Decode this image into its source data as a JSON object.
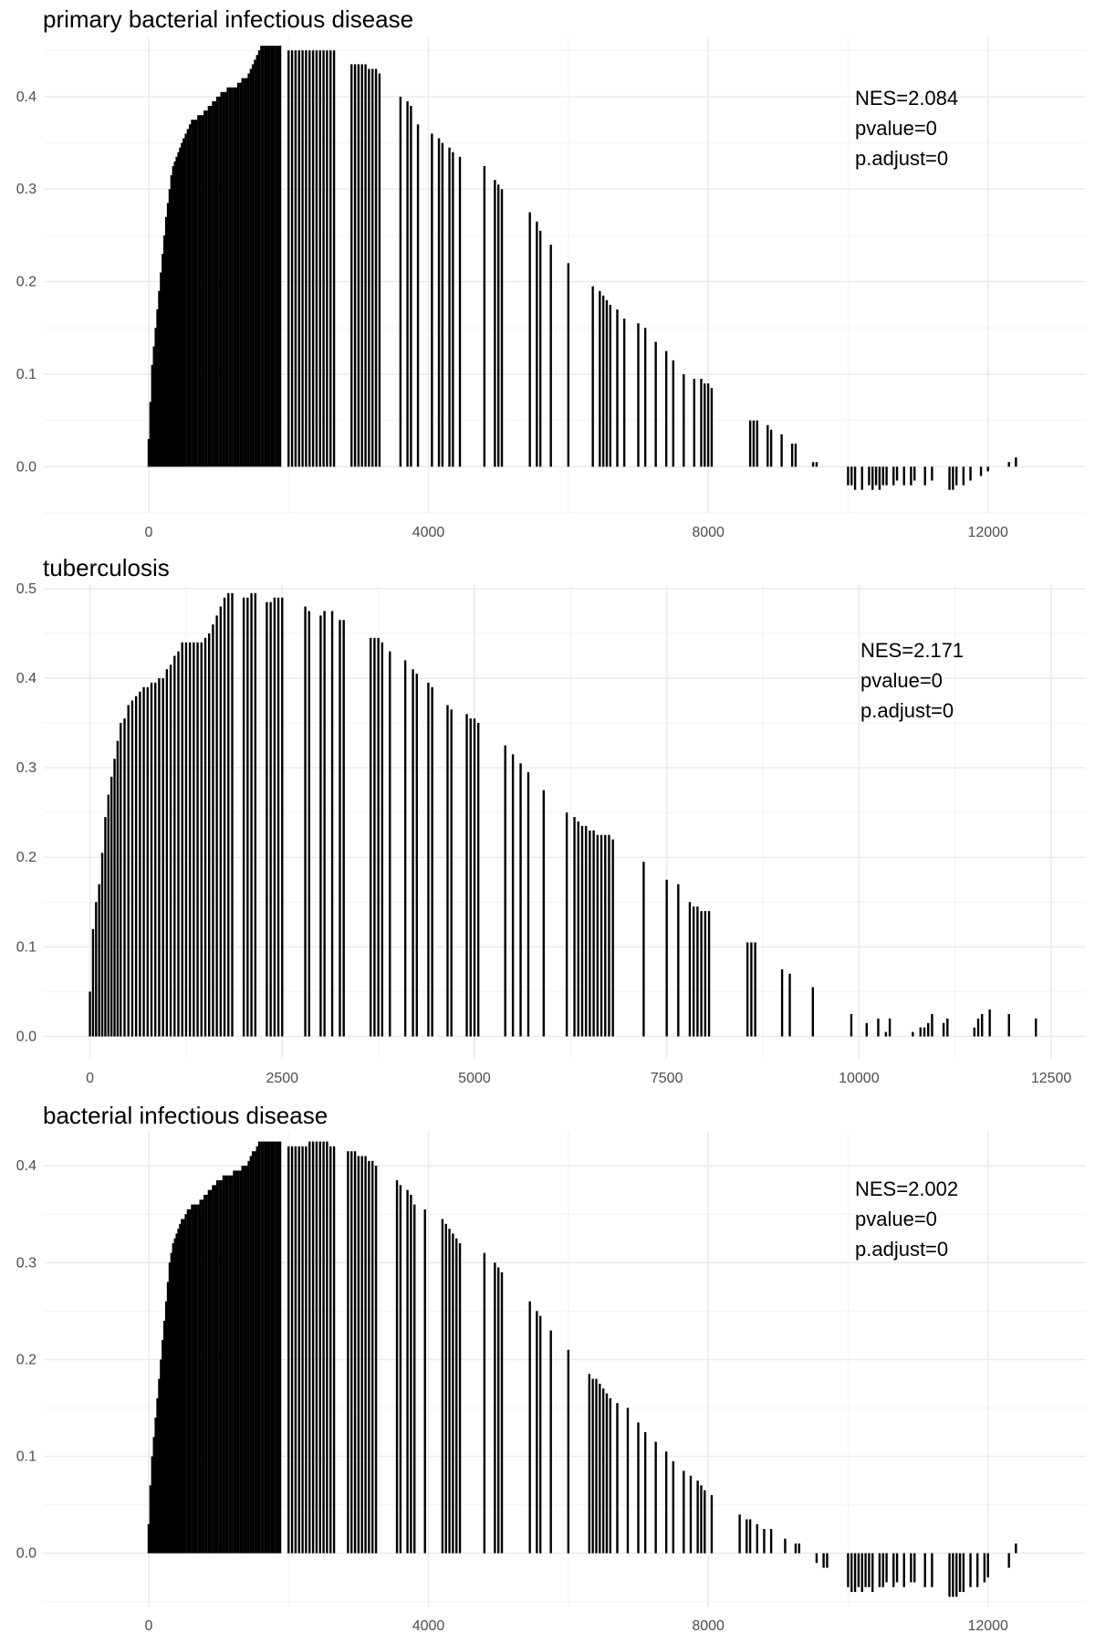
{
  "chart_data": [
    {
      "type": "bar",
      "title": "primary bacterial infectious disease",
      "xlabel": "",
      "ylabel": "",
      "xlim": [
        -1500,
        13400
      ],
      "ylim": [
        -0.05,
        0.465
      ],
      "xticks": [
        0,
        4000,
        8000,
        12000
      ],
      "xtick_labels": [
        "0",
        "4000",
        "8000",
        "12000"
      ],
      "yticks": [
        0.0,
        0.1,
        0.2,
        0.3,
        0.4
      ],
      "ytick_labels": [
        "0.0",
        "0.1",
        "0.2",
        "0.3",
        "0.4"
      ],
      "grid": true,
      "annotation": [
        "NES=2.084",
        "pvalue=0",
        "p.adjust=0"
      ],
      "x": [
        0,
        25,
        50,
        75,
        100,
        125,
        150,
        175,
        200,
        225,
        250,
        275,
        300,
        325,
        350,
        375,
        400,
        425,
        450,
        475,
        500,
        530,
        560,
        590,
        620,
        650,
        680,
        710,
        740,
        770,
        800,
        830,
        860,
        890,
        920,
        950,
        980,
        1010,
        1040,
        1070,
        1100,
        1130,
        1160,
        1190,
        1220,
        1250,
        1280,
        1310,
        1340,
        1370,
        1400,
        1430,
        1460,
        1490,
        1520,
        1550,
        1580,
        1610,
        1640,
        1670,
        1700,
        1730,
        1760,
        1790,
        1820,
        1850,
        1880,
        2000,
        2050,
        2100,
        2150,
        2200,
        2250,
        2300,
        2350,
        2400,
        2450,
        2500,
        2550,
        2600,
        2650,
        2900,
        2950,
        3000,
        3050,
        3100,
        3150,
        3200,
        3250,
        3300,
        3600,
        3700,
        3750,
        3850,
        4050,
        4150,
        4200,
        4300,
        4350,
        4450,
        4800,
        4950,
        5000,
        5050,
        5450,
        5550,
        5600,
        5750,
        6000,
        6350,
        6450,
        6500,
        6550,
        6600,
        6700,
        6800,
        7000,
        7100,
        7250,
        7400,
        7500,
        7650,
        7800,
        7900,
        7950,
        8000,
        8050,
        8600,
        8650,
        8700,
        8850,
        8900,
        9050,
        9200,
        9250,
        9500,
        9550,
        10000,
        10050,
        10100,
        10200,
        10300,
        10350,
        10400,
        10450,
        10500,
        10550,
        10650,
        10700,
        10800,
        10900,
        10950,
        11100,
        11200,
        11450,
        11500,
        11550,
        11650,
        11750,
        11900,
        12000,
        12300,
        12400
      ],
      "values": [
        0.03,
        0.07,
        0.11,
        0.13,
        0.15,
        0.17,
        0.19,
        0.21,
        0.23,
        0.25,
        0.27,
        0.285,
        0.3,
        0.315,
        0.325,
        0.33,
        0.335,
        0.34,
        0.345,
        0.35,
        0.355,
        0.36,
        0.365,
        0.37,
        0.375,
        0.375,
        0.375,
        0.38,
        0.38,
        0.38,
        0.385,
        0.385,
        0.39,
        0.39,
        0.395,
        0.395,
        0.4,
        0.4,
        0.405,
        0.405,
        0.405,
        0.41,
        0.41,
        0.41,
        0.41,
        0.41,
        0.415,
        0.415,
        0.42,
        0.42,
        0.42,
        0.425,
        0.43,
        0.435,
        0.44,
        0.445,
        0.45,
        0.455,
        0.455,
        0.455,
        0.455,
        0.455,
        0.455,
        0.455,
        0.455,
        0.455,
        0.455,
        0.45,
        0.45,
        0.45,
        0.45,
        0.45,
        0.45,
        0.45,
        0.45,
        0.45,
        0.45,
        0.45,
        0.45,
        0.45,
        0.45,
        0.435,
        0.435,
        0.435,
        0.435,
        0.435,
        0.43,
        0.43,
        0.43,
        0.425,
        0.4,
        0.395,
        0.39,
        0.37,
        0.36,
        0.355,
        0.35,
        0.345,
        0.34,
        0.335,
        0.325,
        0.31,
        0.305,
        0.3,
        0.275,
        0.265,
        0.255,
        0.24,
        0.22,
        0.195,
        0.19,
        0.185,
        0.18,
        0.175,
        0.17,
        0.16,
        0.155,
        0.15,
        0.135,
        0.125,
        0.115,
        0.1,
        0.095,
        0.095,
        0.09,
        0.09,
        0.085,
        0.05,
        0.05,
        0.05,
        0.045,
        0.04,
        0.035,
        0.025,
        0.025,
        0.005,
        0.005,
        -0.02,
        -0.02,
        -0.025,
        -0.025,
        -0.02,
        -0.025,
        -0.02,
        -0.025,
        -0.02,
        -0.02,
        -0.02,
        -0.015,
        -0.02,
        -0.02,
        -0.015,
        -0.02,
        -0.015,
        -0.025,
        -0.025,
        -0.02,
        -0.02,
        -0.015,
        -0.01,
        -0.005,
        0.005,
        0.01
      ]
    },
    {
      "type": "bar",
      "title": "tuberculosis",
      "xlabel": "",
      "ylabel": "",
      "xlim": [
        -600,
        12950
      ],
      "ylim": [
        -0.025,
        0.505
      ],
      "xticks": [
        0,
        2500,
        5000,
        7500,
        10000,
        12500
      ],
      "xtick_labels": [
        "0",
        "2500",
        "5000",
        "7500",
        "10000",
        "12500"
      ],
      "yticks": [
        0.0,
        0.1,
        0.2,
        0.3,
        0.4,
        0.5
      ],
      "ytick_labels": [
        "0.0",
        "0.1",
        "0.2",
        "0.3",
        "0.4",
        "0.5"
      ],
      "grid": true,
      "annotation": [
        "NES=2.171",
        "pvalue=0",
        "p.adjust=0"
      ],
      "x": [
        0,
        40,
        80,
        120,
        160,
        200,
        240,
        280,
        320,
        360,
        400,
        450,
        500,
        550,
        600,
        650,
        700,
        750,
        800,
        850,
        900,
        950,
        1000,
        1050,
        1100,
        1150,
        1200,
        1250,
        1300,
        1350,
        1400,
        1450,
        1500,
        1550,
        1600,
        1650,
        1700,
        1750,
        1800,
        1850,
        2000,
        2050,
        2100,
        2150,
        2300,
        2350,
        2400,
        2450,
        2500,
        2800,
        2850,
        3000,
        3050,
        3150,
        3250,
        3300,
        3650,
        3700,
        3750,
        3800,
        3900,
        4100,
        4200,
        4250,
        4400,
        4450,
        4650,
        4700,
        4900,
        4950,
        5000,
        5050,
        5400,
        5500,
        5600,
        5700,
        5900,
        6200,
        6300,
        6350,
        6400,
        6450,
        6500,
        6550,
        6600,
        6650,
        6700,
        6750,
        6800,
        7200,
        7500,
        7650,
        7800,
        7850,
        7900,
        7950,
        8000,
        8050,
        8550,
        8600,
        8650,
        9000,
        9100,
        9400,
        9900,
        10100,
        10250,
        10350,
        10400,
        10700,
        10800,
        10850,
        10900,
        10950,
        11100,
        11150,
        11500,
        11550,
        11600,
        11700,
        11950,
        12300
      ],
      "values": [
        0.05,
        0.12,
        0.15,
        0.17,
        0.205,
        0.245,
        0.27,
        0.29,
        0.31,
        0.33,
        0.35,
        0.355,
        0.37,
        0.375,
        0.38,
        0.385,
        0.39,
        0.39,
        0.395,
        0.395,
        0.4,
        0.4,
        0.41,
        0.415,
        0.425,
        0.43,
        0.44,
        0.44,
        0.44,
        0.44,
        0.44,
        0.44,
        0.445,
        0.45,
        0.46,
        0.47,
        0.48,
        0.49,
        0.495,
        0.495,
        0.49,
        0.49,
        0.495,
        0.495,
        0.485,
        0.485,
        0.49,
        0.49,
        0.49,
        0.48,
        0.475,
        0.47,
        0.475,
        0.475,
        0.465,
        0.465,
        0.445,
        0.445,
        0.445,
        0.44,
        0.43,
        0.42,
        0.41,
        0.405,
        0.395,
        0.39,
        0.37,
        0.365,
        0.36,
        0.355,
        0.355,
        0.35,
        0.325,
        0.315,
        0.305,
        0.295,
        0.275,
        0.25,
        0.245,
        0.24,
        0.235,
        0.235,
        0.23,
        0.23,
        0.225,
        0.225,
        0.225,
        0.225,
        0.22,
        0.195,
        0.175,
        0.17,
        0.15,
        0.145,
        0.145,
        0.14,
        0.14,
        0.14,
        0.105,
        0.105,
        0.105,
        0.075,
        0.07,
        0.055,
        0.025,
        0.015,
        0.02,
        0.005,
        0.02,
        0.005,
        0.01,
        0.01,
        0.015,
        0.025,
        0.015,
        0.02,
        0.01,
        0.02,
        0.025,
        0.03,
        0.025,
        0.02
      ]
    },
    {
      "type": "bar",
      "title": "bacterial infectious disease",
      "xlabel": "",
      "ylabel": "",
      "xlim": [
        -1500,
        13400
      ],
      "ylim": [
        -0.055,
        0.435
      ],
      "xticks": [
        0,
        4000,
        8000,
        12000
      ],
      "xtick_labels": [
        "0",
        "4000",
        "8000",
        "12000"
      ],
      "yticks": [
        0.0,
        0.1,
        0.2,
        0.3,
        0.4
      ],
      "ytick_labels": [
        "0.0",
        "0.1",
        "0.2",
        "0.3",
        "0.4"
      ],
      "grid": true,
      "annotation": [
        "NES=2.002",
        "pvalue=0",
        "p.adjust=0"
      ],
      "x": [
        0,
        25,
        50,
        75,
        100,
        125,
        150,
        175,
        200,
        225,
        250,
        275,
        300,
        325,
        350,
        375,
        400,
        425,
        450,
        475,
        500,
        530,
        560,
        590,
        620,
        650,
        680,
        710,
        740,
        770,
        800,
        830,
        860,
        890,
        920,
        950,
        980,
        1010,
        1040,
        1070,
        1100,
        1130,
        1160,
        1190,
        1220,
        1250,
        1280,
        1310,
        1340,
        1370,
        1400,
        1430,
        1460,
        1490,
        1520,
        1550,
        1580,
        1610,
        1640,
        1670,
        1700,
        1730,
        1760,
        1790,
        1820,
        1850,
        1880,
        2000,
        2050,
        2100,
        2150,
        2200,
        2250,
        2300,
        2350,
        2400,
        2450,
        2500,
        2550,
        2600,
        2650,
        2850,
        2900,
        2950,
        3000,
        3050,
        3100,
        3150,
        3200,
        3250,
        3550,
        3600,
        3700,
        3750,
        3800,
        3950,
        4200,
        4250,
        4300,
        4350,
        4400,
        4450,
        4800,
        4950,
        5000,
        5050,
        5450,
        5550,
        5600,
        5750,
        6000,
        6300,
        6350,
        6400,
        6450,
        6500,
        6550,
        6600,
        6700,
        6850,
        7000,
        7100,
        7250,
        7400,
        7500,
        7650,
        7750,
        7850,
        7900,
        7950,
        8050,
        8450,
        8550,
        8600,
        8700,
        8800,
        8900,
        9100,
        9250,
        9300,
        9550,
        9650,
        9700,
        10000,
        10050,
        10100,
        10150,
        10200,
        10250,
        10300,
        10350,
        10450,
        10500,
        10550,
        10650,
        10700,
        10800,
        10900,
        10950,
        11100,
        11200,
        11450,
        11500,
        11550,
        11600,
        11650,
        11750,
        11850,
        11950,
        12000,
        12300,
        12400
      ],
      "values": [
        0.03,
        0.07,
        0.1,
        0.12,
        0.14,
        0.16,
        0.18,
        0.2,
        0.22,
        0.24,
        0.26,
        0.28,
        0.3,
        0.31,
        0.32,
        0.325,
        0.33,
        0.335,
        0.34,
        0.345,
        0.345,
        0.35,
        0.355,
        0.355,
        0.36,
        0.36,
        0.36,
        0.36,
        0.365,
        0.365,
        0.37,
        0.37,
        0.375,
        0.375,
        0.38,
        0.38,
        0.385,
        0.385,
        0.385,
        0.39,
        0.39,
        0.39,
        0.39,
        0.39,
        0.395,
        0.395,
        0.395,
        0.395,
        0.4,
        0.4,
        0.4,
        0.405,
        0.41,
        0.415,
        0.415,
        0.42,
        0.425,
        0.425,
        0.425,
        0.425,
        0.425,
        0.425,
        0.425,
        0.425,
        0.425,
        0.425,
        0.425,
        0.42,
        0.42,
        0.42,
        0.42,
        0.42,
        0.42,
        0.425,
        0.425,
        0.425,
        0.425,
        0.425,
        0.425,
        0.42,
        0.42,
        0.415,
        0.415,
        0.415,
        0.41,
        0.41,
        0.41,
        0.405,
        0.405,
        0.4,
        0.385,
        0.38,
        0.375,
        0.37,
        0.36,
        0.355,
        0.345,
        0.34,
        0.335,
        0.33,
        0.325,
        0.32,
        0.31,
        0.3,
        0.295,
        0.29,
        0.26,
        0.25,
        0.245,
        0.23,
        0.21,
        0.185,
        0.18,
        0.18,
        0.175,
        0.17,
        0.165,
        0.16,
        0.155,
        0.15,
        0.135,
        0.125,
        0.115,
        0.105,
        0.095,
        0.085,
        0.08,
        0.075,
        0.07,
        0.065,
        0.06,
        0.04,
        0.035,
        0.035,
        0.03,
        0.025,
        0.025,
        0.015,
        0.01,
        0.01,
        -0.01,
        -0.015,
        -0.015,
        -0.035,
        -0.04,
        -0.04,
        -0.035,
        -0.04,
        -0.035,
        -0.035,
        -0.04,
        -0.035,
        -0.035,
        -0.03,
        -0.035,
        -0.03,
        -0.035,
        -0.03,
        -0.03,
        -0.035,
        -0.035,
        -0.045,
        -0.045,
        -0.045,
        -0.04,
        -0.04,
        -0.035,
        -0.035,
        -0.03,
        -0.025,
        -0.015,
        0.01
      ]
    }
  ]
}
